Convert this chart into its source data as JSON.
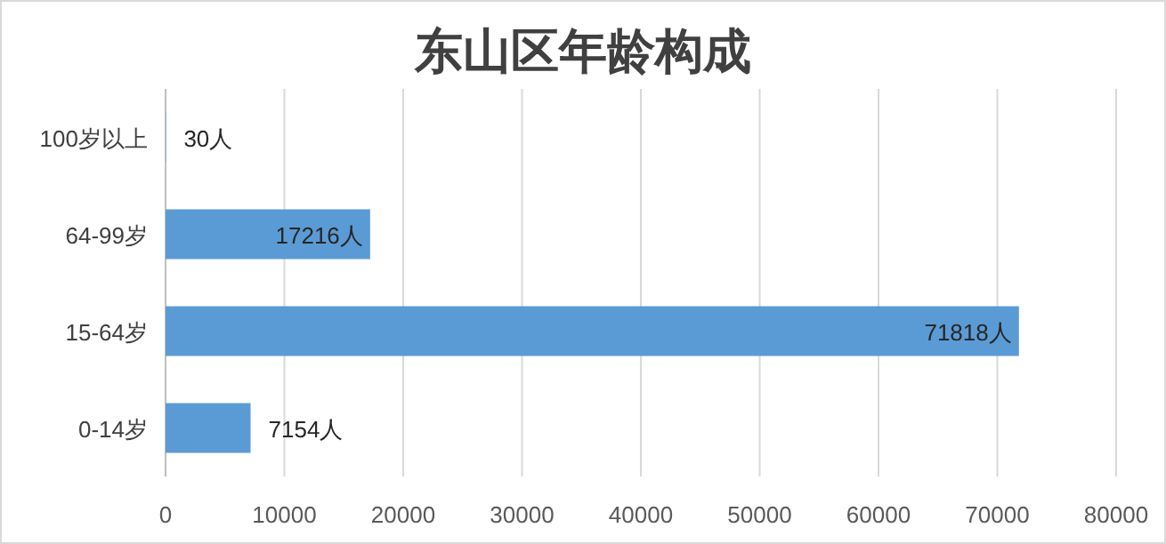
{
  "chart_data": {
    "type": "bar",
    "orientation": "horizontal",
    "title": "东山区年龄构成",
    "categories": [
      "100岁以上",
      "64-99岁",
      "15-64岁",
      "0-14岁"
    ],
    "values": [
      30,
      17216,
      71818,
      7154
    ],
    "value_labels": [
      "30人",
      "17216人",
      "71818人",
      "7154人"
    ],
    "color": "#5b9bd5",
    "xlim": [
      0,
      80000
    ],
    "xticks": [
      0,
      10000,
      20000,
      30000,
      40000,
      50000,
      60000,
      70000,
      80000
    ],
    "grid": "x"
  }
}
